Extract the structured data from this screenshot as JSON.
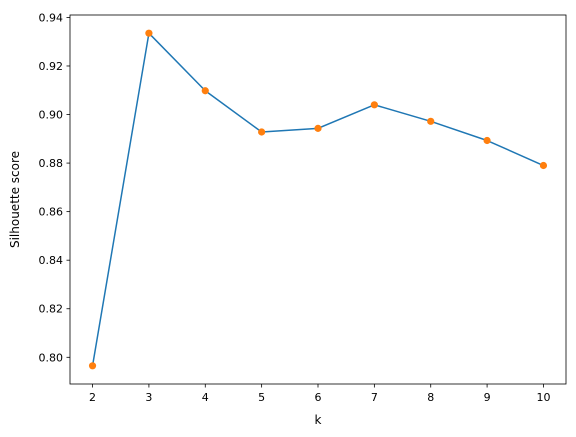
{
  "chart_data": {
    "type": "line",
    "xlabel": "k",
    "ylabel": "Silhouette score",
    "x": [
      2,
      3,
      4,
      5,
      6,
      7,
      8,
      9,
      10
    ],
    "series": [
      {
        "values": [
          0.7965,
          0.9335,
          0.9098,
          0.8928,
          0.8943,
          0.904,
          0.8972,
          0.8893,
          0.879
        ],
        "line_color": "#1f77b4",
        "marker_color": "#ff7f0e"
      }
    ],
    "xlim": [
      1.6,
      10.4
    ],
    "ylim": [
      0.789,
      0.941
    ],
    "xticks": [
      2,
      3,
      4,
      5,
      6,
      7,
      8,
      9,
      10
    ],
    "yticks": [
      0.8,
      0.82,
      0.84,
      0.86,
      0.88,
      0.9,
      0.92,
      0.94
    ],
    "ytick_labels": [
      "0.80",
      "0.82",
      "0.84",
      "0.86",
      "0.88",
      "0.90",
      "0.92",
      "0.94"
    ],
    "grid": false,
    "legend": false
  }
}
